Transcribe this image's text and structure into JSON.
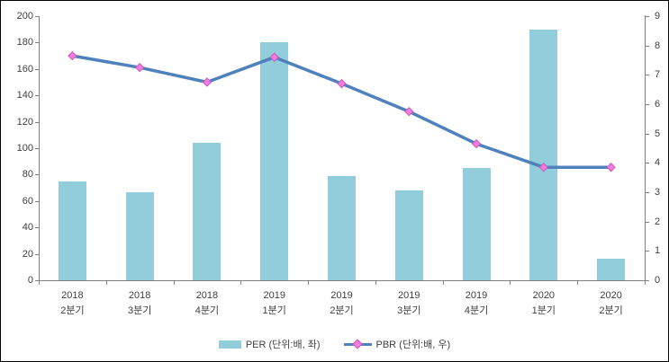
{
  "chart_data": {
    "type": "combo-bar-line",
    "title": "",
    "categories": [
      [
        "2018",
        "2분기"
      ],
      [
        "2018",
        "3분기"
      ],
      [
        "2018",
        "4분기"
      ],
      [
        "2019",
        "1분기"
      ],
      [
        "2019",
        "2분기"
      ],
      [
        "2019",
        "3분기"
      ],
      [
        "2019",
        "4분기"
      ],
      [
        "2020",
        "1분기"
      ],
      [
        "2020",
        "2분기"
      ]
    ],
    "series": [
      {
        "name": "PER (단위:배, 좌)",
        "type": "bar",
        "axis": "left",
        "color": "#92CDDC",
        "values": [
          75,
          67,
          104,
          180,
          79,
          68,
          85,
          190,
          16
        ]
      },
      {
        "name": "PBR (단위:배, 우)",
        "type": "line",
        "axis": "right",
        "color": "#4F81BD",
        "marker": "diamond",
        "marker_fill": "#F07CDE",
        "marker_stroke": "#CC59BB",
        "values": [
          7.65,
          7.25,
          6.75,
          7.6,
          6.7,
          5.75,
          4.65,
          3.85,
          3.85
        ]
      }
    ],
    "left_axis": {
      "min": 0,
      "max": 200,
      "step": 20
    },
    "right_axis": {
      "min": 0,
      "max": 9,
      "step": 1
    },
    "layout": {
      "grid": false,
      "legend_position": "bottom",
      "axis_color": "#808080",
      "text_color": "#404040",
      "background": "#FFFFFF",
      "frame_border": "#000000"
    }
  }
}
